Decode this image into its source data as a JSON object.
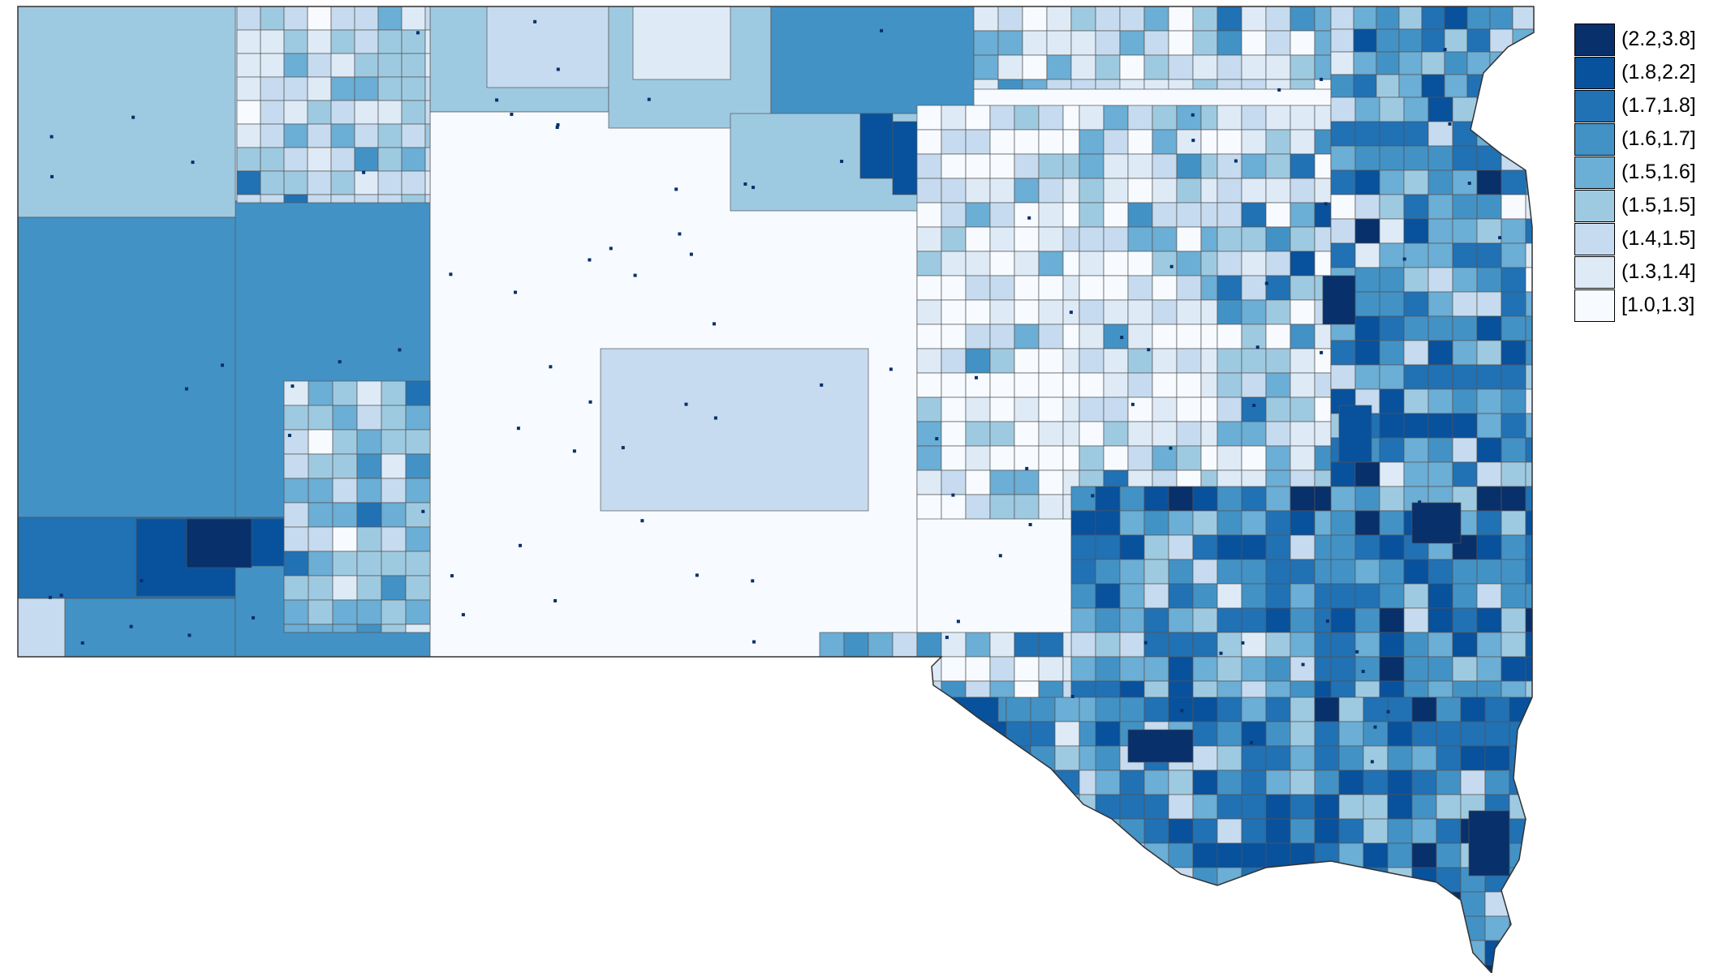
{
  "map": {
    "region": "South Dakota",
    "legend": {
      "items": [
        {
          "label": "(2.2,3.8]",
          "color": "#08306b"
        },
        {
          "label": "(1.8,2.2]",
          "color": "#08519c"
        },
        {
          "label": "(1.7,1.8]",
          "color": "#2171b5"
        },
        {
          "label": "(1.6,1.7]",
          "color": "#4292c6"
        },
        {
          "label": "(1.5,1.6]",
          "color": "#6baed6"
        },
        {
          "label": "(1.5,1.5]",
          "color": "#9ecae1"
        },
        {
          "label": "(1.4,1.5]",
          "color": "#c6dbef"
        },
        {
          "label": "(1.3,1.4]",
          "color": "#deebf7"
        },
        {
          "label": "[1.0,1.3]",
          "color": "#f7fbff"
        }
      ]
    }
  }
}
